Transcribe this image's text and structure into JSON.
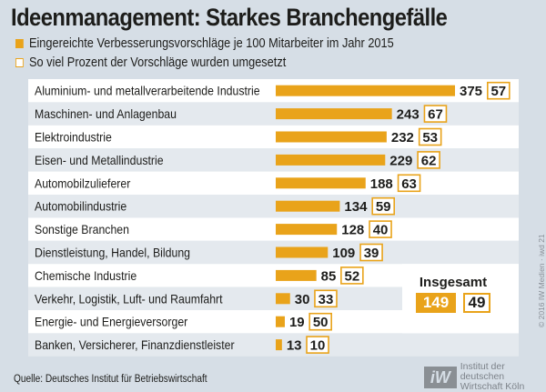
{
  "chart_data": {
    "type": "bar",
    "orientation": "horizontal",
    "title": "Ideenmanagement: Starkes Branchengefälle",
    "legend": [
      {
        "label": "Eingereichte Verbesserungsvorschläge je 100 Mitarbeiter im Jahr 2015",
        "style": "filled",
        "color": "#e9a31a"
      },
      {
        "label": "So viel Prozent der Vorschläge wurden umgesetzt",
        "style": "outlined",
        "color": "#e9a31a"
      }
    ],
    "legend_position": "top-left",
    "categories": [
      "Aluminium- und metallverarbeitende Industrie",
      "Maschinen- und Anlagenbau",
      "Elektroindustrie",
      "Eisen- und Metallindustrie",
      "Automobilzulieferer",
      "Automobilindustrie",
      "Sonstige Branchen",
      "Dienstleistung, Handel, Bildung",
      "Chemische Industrie",
      "Verkehr, Logistik, Luft- und Raumfahrt",
      "Energie- und Energieversorger",
      "Banken, Versicherer, Finanzdienstleister"
    ],
    "series": [
      {
        "name": "Eingereichte Verbesserungsvorschläge je 100 Mitarbeiter im Jahr 2015",
        "values": [
          375,
          243,
          232,
          229,
          188,
          134,
          128,
          109,
          85,
          30,
          19,
          13
        ]
      },
      {
        "name": "So viel Prozent der Vorschläge wurden umgesetzt",
        "values": [
          57,
          67,
          53,
          62,
          63,
          59,
          40,
          39,
          52,
          33,
          50,
          10
        ]
      }
    ],
    "total": {
      "label": "Insgesamt",
      "submitted": 149,
      "implemented_pct": 49
    },
    "grid": false,
    "colors": {
      "bar": "#e9a31a",
      "row_light": "#ffffff",
      "row_shaded": "#e4e9ee",
      "background": "#d6dee6"
    }
  },
  "source": "Quelle: Deutsches Institut für Betriebswirtschaft",
  "logo": {
    "mark": "iW",
    "line1": "Institut der deutschen",
    "line2": "Wirtschaft Köln"
  },
  "copyright": "© 2016 IW Medien · iwd 21"
}
